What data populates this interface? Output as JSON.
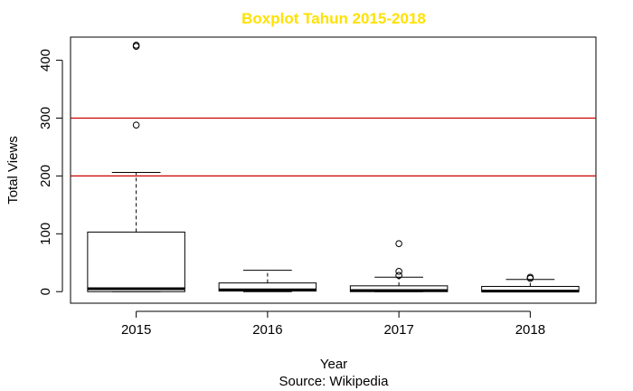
{
  "chart_data": {
    "type": "boxplot",
    "title": "Boxplot Tahun 2015-2018",
    "xlabel": "Year",
    "caption": "Source: Wikipedia",
    "ylabel": "Total Views",
    "ylim": [
      -20,
      440
    ],
    "yticks": [
      0,
      100,
      200,
      300,
      400
    ],
    "categories": [
      "2015",
      "2016",
      "2017",
      "2018"
    ],
    "boxes": [
      {
        "whisker_low": 0,
        "q1": 0,
        "median": 5,
        "q3": 103,
        "whisker_high": 206,
        "outliers": [
          288,
          424,
          426
        ]
      },
      {
        "whisker_low": 0,
        "q1": 1,
        "median": 3,
        "q3": 15,
        "whisker_high": 37,
        "outliers": []
      },
      {
        "whisker_low": 0,
        "q1": 0,
        "median": 2,
        "q3": 10,
        "whisker_high": 25,
        "outliers": [
          28,
          35,
          83
        ]
      },
      {
        "whisker_low": 0,
        "q1": 0,
        "median": 1,
        "q3": 9,
        "whisker_high": 21,
        "outliers": [
          23,
          25
        ]
      }
    ],
    "reference_lines": [
      200,
      300
    ],
    "reference_line_color": "#CC0000",
    "title_color": "#FFE100",
    "grid": false,
    "legend": "none"
  }
}
